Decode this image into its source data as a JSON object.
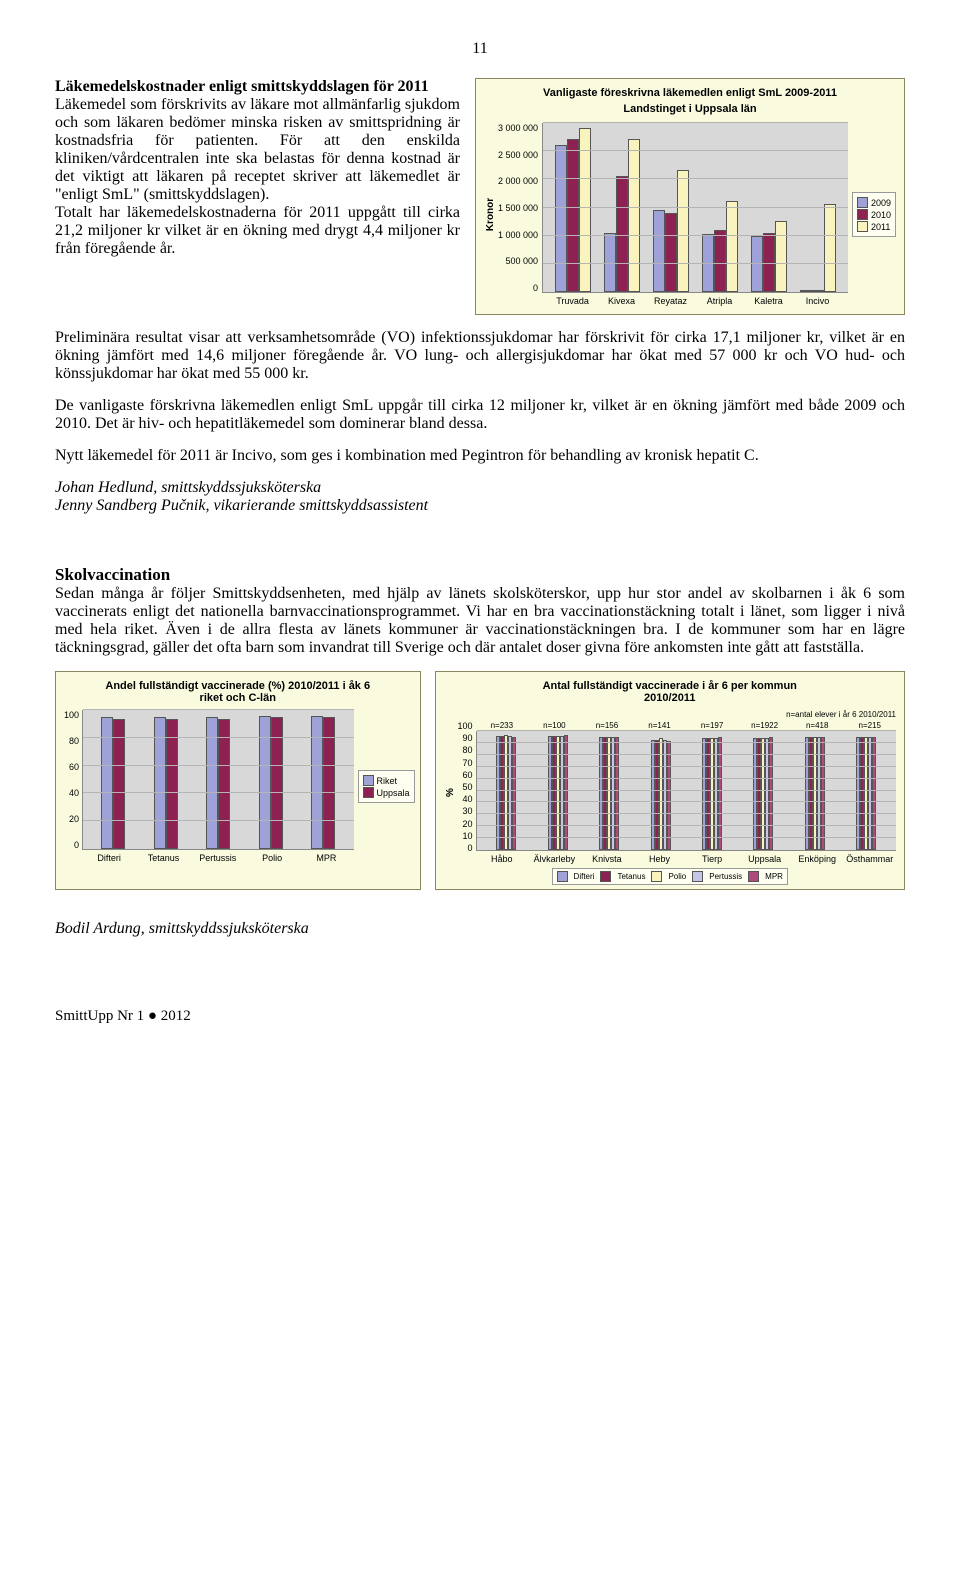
{
  "page_number": "11",
  "section1": {
    "heading": "Läkemedelskostnader enligt smittskyddslagen för 2011",
    "p1": "Läkemedel som förskrivits av läkare mot allmänfarlig sjukdom och som läkaren bedömer minska risken av smittspridning är kostnadsfria för patienten. För att den enskilda kliniken/vårdcentralen inte ska belastas för denna kostnad är det viktigt att läkaren på receptet skriver att läkemedlet är \"enligt SmL\" (smittskyddslagen).",
    "p2": "Totalt har läkemedelskostnaderna för 2011 uppgått till cirka 21,2 miljoner kr vilket är en ökning med drygt 4,4 miljoner kr från föregående år.",
    "p3": "Preliminära resultat visar att verksamhetsområde (VO) infektionssjukdomar har förskrivit för cirka 17,1 miljoner kr, vilket är en ökning jämfört med 14,6 miljoner föregående år. VO lung- och allergisjukdomar har ökat med 57 000 kr och VO hud- och könssjukdomar har ökat med 55 000 kr.",
    "p4": "De vanligaste förskrivna läkemedlen enligt SmL uppgår till cirka 12 miljoner kr, vilket är en ökning jämfört med både 2009 och 2010. Det är hiv- och hepatitläkemedel som dominerar bland dessa.",
    "p5": "Nytt läkemedel för 2011 är Incivo, som ges i kombination med Pegintron för behandling av kronisk hepatit C.",
    "author1": "Johan Hedlund, smittskyddssjuksköterska",
    "author2": "Jenny Sandberg Pučnik, vikarierande smittskyddsassistent"
  },
  "chart1": {
    "type": "bar",
    "title": "Vanligaste föreskrivna läkemedlen enligt SmL 2009-2011",
    "subtitle": "Landstinget i Uppsala län",
    "y_label": "Kronor",
    "y_max": 3000000,
    "y_ticks": [
      "3 000 000",
      "2 500 000",
      "2 000 000",
      "1 500 000",
      "1 000 000",
      "500 000",
      "0"
    ],
    "categories": [
      "Truvada",
      "Kivexa",
      "Reyataz",
      "Atripla",
      "Kaletra",
      "Incivo"
    ],
    "series": [
      {
        "name": "2009",
        "color": "#9ea2d6",
        "values": [
          2600000,
          1050000,
          1450000,
          1020000,
          980000,
          0
        ]
      },
      {
        "name": "2010",
        "color": "#8c2152",
        "values": [
          2700000,
          2050000,
          1400000,
          1100000,
          1050000,
          0
        ]
      },
      {
        "name": "2011",
        "color": "#f9f4bd",
        "values": [
          2900000,
          2700000,
          2150000,
          1600000,
          1250000,
          1550000
        ]
      }
    ],
    "background": "#fafadf",
    "plot_bg": "#d8d8d8",
    "grid_color": "#b5b5b5"
  },
  "section2": {
    "heading": "Skolvaccination",
    "p1": "Sedan många år följer Smittskyddsenheten, med hjälp av länets skolsköterskor, upp hur stor andel av skolbarnen i åk 6 som vaccinerats enligt det nationella barnvaccinationsprogrammet. Vi har en bra vaccinationstäckning totalt i länet, som ligger i nivå med hela riket. Även i de allra flesta av länets kommuner är vaccinationstäckningen bra. I de kommuner som har en lägre täckningsgrad, gäller det ofta barn som invandrat till Sverige och där antalet doser givna före ankomsten inte gått att fastställa.",
    "author": "Bodil Ardung, smittskyddssjuksköterska"
  },
  "chart2": {
    "type": "bar",
    "title_l1": "Andel fullständigt vaccinerade (%) 2010/2011 i åk 6",
    "title_l2": "riket och C-län",
    "y_max": 100,
    "y_ticks": [
      "100",
      "80",
      "60",
      "40",
      "20",
      "0"
    ],
    "categories": [
      "Difteri",
      "Tetanus",
      "Pertussis",
      "Polio",
      "MPR"
    ],
    "series": [
      {
        "name": "Riket",
        "color": "#9ea2d6",
        "values": [
          94,
          94,
          94,
          95,
          95
        ]
      },
      {
        "name": "Uppsala",
        "color": "#8c2152",
        "values": [
          93,
          93,
          93,
          94,
          94
        ]
      }
    ]
  },
  "chart3": {
    "type": "bar",
    "title_l1": "Antal fullständigt vaccinerade i år 6 per kommun",
    "title_l2": "2010/2011",
    "note": "n=antal elever i år 6 2010/2011",
    "y_label": "%",
    "y_max": 100,
    "y_ticks": [
      "100",
      "90",
      "80",
      "70",
      "60",
      "50",
      "40",
      "30",
      "20",
      "10",
      "0"
    ],
    "n_labels": [
      "n=233",
      "n=100",
      "n=156",
      "n=141",
      "n=197",
      "n=1922",
      "n=418",
      "n=215"
    ],
    "categories": [
      "Håbo",
      "Älvkarleby",
      "Knivsta",
      "Heby",
      "Tierp",
      "Uppsala",
      "Enköping",
      "Östhammar"
    ],
    "series": [
      {
        "name": "Difteri",
        "color": "#9ea2d6",
        "values": [
          95,
          95,
          94,
          92,
          93,
          93,
          94,
          94
        ]
      },
      {
        "name": "Tetanus",
        "color": "#8c2152",
        "values": [
          95,
          95,
          94,
          92,
          93,
          93,
          94,
          94
        ]
      },
      {
        "name": "Polio",
        "color": "#f9f4bd",
        "values": [
          96,
          95,
          94,
          93,
          93,
          93,
          94,
          94
        ]
      },
      {
        "name": "Pertussis",
        "color": "#c8c6e6",
        "values": [
          95,
          95,
          94,
          92,
          93,
          93,
          94,
          94
        ]
      },
      {
        "name": "MPR",
        "color": "#b04a7a",
        "values": [
          94,
          96,
          94,
          91,
          94,
          94,
          94,
          94
        ]
      }
    ]
  },
  "footer": "SmittUpp Nr 1 ● 2012"
}
